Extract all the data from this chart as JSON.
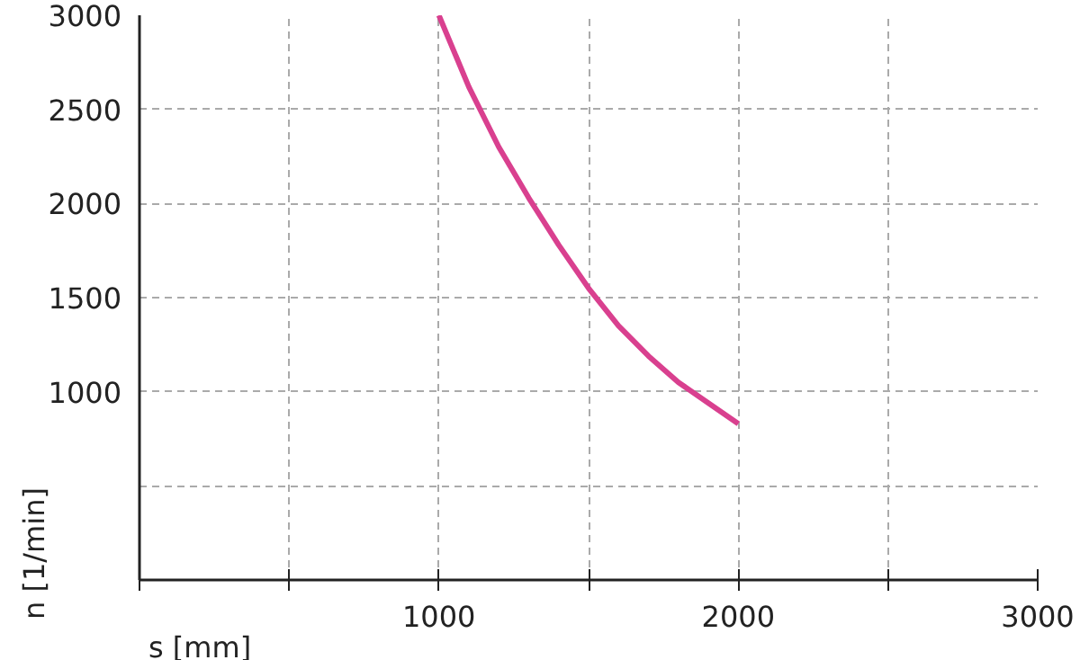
{
  "chart_data": {
    "type": "line",
    "xlabel": "s [mm]",
    "ylabel": "n [1/min]",
    "x": [
      1000,
      1100,
      1200,
      1300,
      1400,
      1500,
      1600,
      1700,
      1800,
      1900,
      2000
    ],
    "series": [
      {
        "color": "#d9408f",
        "values": [
          3000,
          2620,
          2300,
          2030,
          1780,
          1550,
          1350,
          1190,
          1050,
          940,
          830
        ]
      }
    ],
    "xlim": [
      0,
      3000
    ],
    "ylim": [
      0,
      3000
    ],
    "xticks": [
      {
        "value": 0,
        "label": null
      },
      {
        "value": 500,
        "label": null
      },
      1000,
      {
        "value": 1500,
        "label": null
      },
      2000,
      {
        "value": 2500,
        "label": null
      },
      3000
    ],
    "yticks": [
      {
        "value": 0,
        "label": null
      },
      {
        "value": 500,
        "label": null
      },
      1000,
      1500,
      2000,
      2500,
      3000
    ],
    "grid": true,
    "marker": "none",
    "line_style": "solid"
  }
}
